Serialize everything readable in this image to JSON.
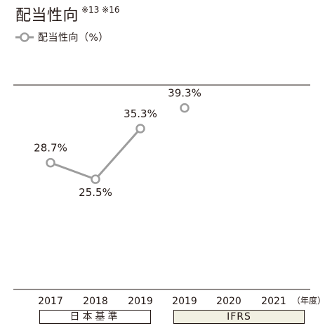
{
  "header": {
    "title": "配当性向",
    "note": "※13 ※16",
    "legend_label": "配当性向（%）"
  },
  "chart_data": {
    "type": "line",
    "title": "配当性向",
    "x_unit": "（年度）",
    "categories": [
      "2017",
      "2018",
      "2019",
      "2019",
      "2020",
      "2021"
    ],
    "series": [
      {
        "name": "配当性向（%）",
        "values": [
          28.7,
          25.5,
          35.3,
          39.3,
          null,
          null
        ],
        "labels": [
          "28.7%",
          "25.5%",
          "35.3%",
          "39.3%",
          "",
          ""
        ],
        "segments": [
          [
            0,
            2
          ],
          [
            3,
            3
          ]
        ]
      }
    ],
    "groups": [
      {
        "label": "日本基準",
        "from": 0,
        "to": 2
      },
      {
        "label": "IFRS",
        "from": 3,
        "to": 5
      }
    ],
    "colors": {
      "line": "#9d9d9d",
      "marker_fill": "#ffffff",
      "axis": "#231815",
      "ifrs_fill": "#f1f0e2"
    }
  }
}
